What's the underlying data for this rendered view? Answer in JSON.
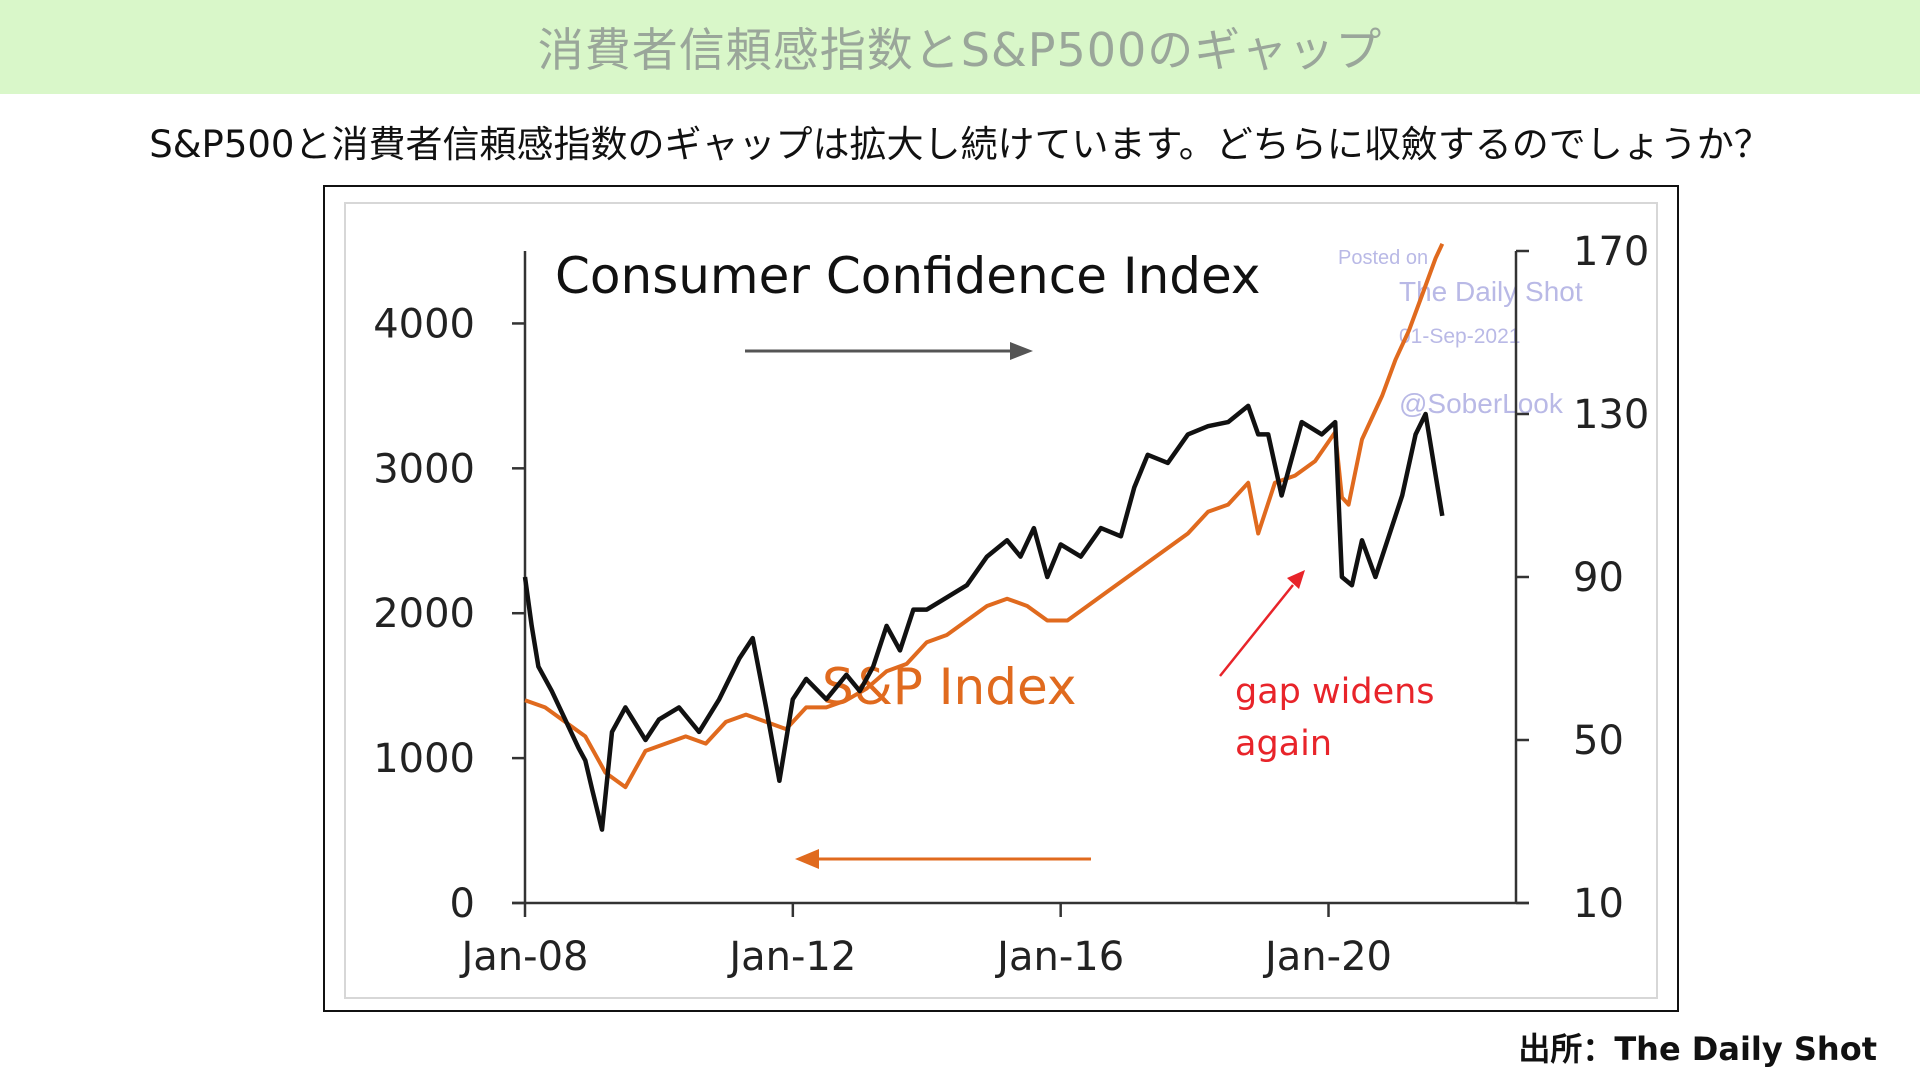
{
  "header": {
    "title": "消費者信頼感指数とS&P500のギャップ"
  },
  "subtitle": "S&P500と消費者信頼感指数のギャップは拡大し続けています。どちらに収斂するのでしょうか？",
  "source": "出所：The Daily Shot",
  "colors": {
    "cci": "#111111",
    "sp": "#e06a1e",
    "annotation": "#e8242a",
    "watermark": "#b9b9e6"
  },
  "chart_data": {
    "type": "line",
    "chart_title": "Consumer Confidence Index",
    "sp_label": "S&P Index",
    "annotation": {
      "line1": "gap widens",
      "line2": "again"
    },
    "watermark": {
      "line1": "Posted on",
      "line2": "The Daily Shot",
      "line3": "01-Sep-2021",
      "line4": "@SoberLook"
    },
    "x_ticks": [
      "Jan-08",
      "Jan-12",
      "Jan-16",
      "Jan-20"
    ],
    "xlim": [
      2008.0,
      2022.8
    ],
    "left_axis": {
      "ticks": [
        "0",
        "1000",
        "2000",
        "3000",
        "4000"
      ],
      "ylim": [
        0,
        4500
      ]
    },
    "right_axis": {
      "ticks": [
        "10",
        "50",
        "90",
        "130",
        "170"
      ],
      "ylim": [
        10,
        170
      ]
    },
    "series": [
      {
        "key": "sp",
        "axis": "left",
        "x": [
          2008.0,
          2008.3,
          2008.6,
          2008.9,
          2009.2,
          2009.5,
          2009.8,
          2010.1,
          2010.4,
          2010.7,
          2011.0,
          2011.3,
          2011.6,
          2011.9,
          2012.2,
          2012.5,
          2012.8,
          2013.1,
          2013.4,
          2013.7,
          2014.0,
          2014.3,
          2014.6,
          2014.9,
          2015.2,
          2015.5,
          2015.8,
          2016.1,
          2016.4,
          2016.7,
          2017.0,
          2017.3,
          2017.6,
          2017.9,
          2018.2,
          2018.5,
          2018.8,
          2018.95,
          2019.2,
          2019.5,
          2019.8,
          2020.1,
          2020.2,
          2020.3,
          2020.5,
          2020.8,
          2021.0,
          2021.2,
          2021.4,
          2021.6,
          2021.7
        ],
        "values": [
          1400,
          1350,
          1250,
          1150,
          900,
          800,
          1050,
          1100,
          1150,
          1100,
          1250,
          1300,
          1250,
          1200,
          1350,
          1350,
          1400,
          1480,
          1600,
          1650,
          1800,
          1850,
          1950,
          2050,
          2100,
          2050,
          1950,
          1950,
          2050,
          2150,
          2250,
          2350,
          2450,
          2550,
          2700,
          2750,
          2900,
          2550,
          2900,
          2950,
          3050,
          3250,
          2800,
          2750,
          3200,
          3500,
          3750,
          3950,
          4200,
          4450,
          4550
        ]
      },
      {
        "key": "cci",
        "axis": "right",
        "x": [
          2008.0,
          2008.1,
          2008.2,
          2008.4,
          2008.6,
          2008.8,
          2008.9,
          2009.0,
          2009.15,
          2009.3,
          2009.5,
          2009.8,
          2010.0,
          2010.3,
          2010.6,
          2010.9,
          2011.2,
          2011.4,
          2011.6,
          2011.8,
          2012.0,
          2012.2,
          2012.5,
          2012.8,
          2013.0,
          2013.2,
          2013.4,
          2013.6,
          2013.8,
          2014.0,
          2014.3,
          2014.6,
          2014.9,
          2015.2,
          2015.4,
          2015.6,
          2015.8,
          2016.0,
          2016.3,
          2016.6,
          2016.9,
          2017.1,
          2017.3,
          2017.6,
          2017.9,
          2018.2,
          2018.5,
          2018.8,
          2018.95,
          2019.1,
          2019.3,
          2019.6,
          2019.9,
          2020.1,
          2020.2,
          2020.35,
          2020.5,
          2020.7,
          2020.9,
          2021.1,
          2021.3,
          2021.45,
          2021.6,
          2021.7
        ],
        "values": [
          90,
          78,
          68,
          62,
          55,
          48,
          45,
          38,
          28,
          52,
          58,
          50,
          55,
          58,
          52,
          60,
          70,
          75,
          58,
          40,
          60,
          65,
          60,
          66,
          62,
          68,
          78,
          72,
          82,
          82,
          85,
          88,
          95,
          99,
          95,
          102,
          90,
          98,
          95,
          102,
          100,
          112,
          120,
          118,
          125,
          127,
          128,
          132,
          125,
          125,
          110,
          128,
          125,
          128,
          90,
          88,
          99,
          90,
          100,
          110,
          125,
          130,
          115,
          105
        ]
      }
    ]
  }
}
